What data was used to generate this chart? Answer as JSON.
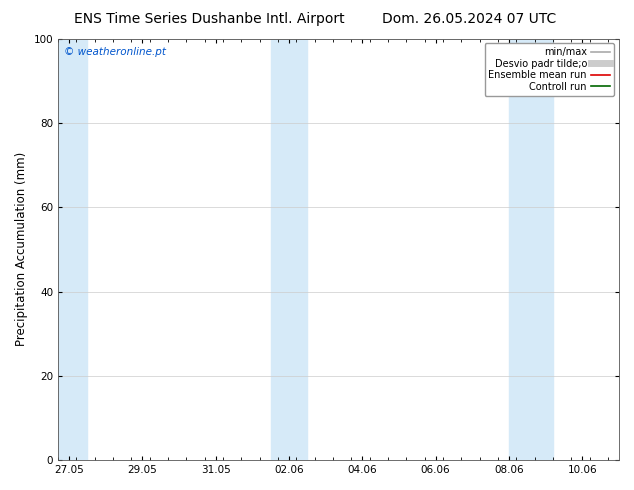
{
  "title_left": "ENS Time Series Dushanbe Intl. Airport",
  "title_right": "Dom. 26.05.2024 07 UTC",
  "ylabel": "Precipitation Accumulation (mm)",
  "watermark": "© weatheronline.pt",
  "watermark_color": "#0055cc",
  "ylim": [
    0,
    100
  ],
  "yticks": [
    0,
    20,
    40,
    60,
    80,
    100
  ],
  "xtick_labels": [
    "27.05",
    "29.05",
    "31.05",
    "02.06",
    "04.06",
    "06.06",
    "08.06",
    "10.06"
  ],
  "x_values": [
    0,
    2,
    4,
    6,
    8,
    10,
    12,
    14
  ],
  "xlim": [
    -0.3,
    15.0
  ],
  "shaded_bands": [
    {
      "x_start": -0.3,
      "x_end": 0.5,
      "color": "#d6eaf8"
    },
    {
      "x_start": 5.5,
      "x_end": 6.5,
      "color": "#d6eaf8"
    },
    {
      "x_start": 12.0,
      "x_end": 13.2,
      "color": "#d6eaf8"
    }
  ],
  "legend_entries": [
    {
      "label": "min/max",
      "color": "#aaaaaa",
      "lw": 1.2
    },
    {
      "label": "Desvio padr tilde;o",
      "color": "#cccccc",
      "lw": 5
    },
    {
      "label": "Ensemble mean run",
      "color": "#dd0000",
      "lw": 1.2
    },
    {
      "label": "Controll run",
      "color": "#006600",
      "lw": 1.2
    }
  ],
  "bg_color": "#ffffff",
  "plot_bg_color": "#ffffff",
  "grid_color": "#cccccc",
  "title_fontsize": 10,
  "tick_fontsize": 7.5,
  "label_fontsize": 8.5,
  "legend_fontsize": 7
}
